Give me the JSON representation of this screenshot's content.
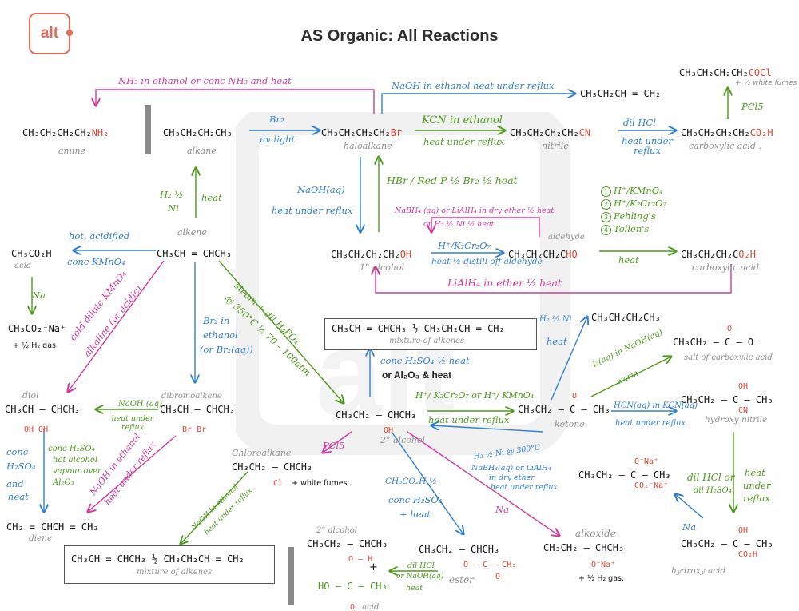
{
  "brand": {
    "logo_text": "alt",
    "watermark": "alt"
  },
  "title": "AS Organic: All Reactions",
  "colors": {
    "blue": "#2f7fd6",
    "green": "#4e9a1c",
    "pink": "#d4389f",
    "red": "#e0432f",
    "grey": "#8e8e8e",
    "logo": "#e46a5a"
  },
  "compounds": {
    "amine": {
      "formula_main": "CH₃CH₂CH₂CH₂",
      "formula_red": "NH₂",
      "caption": "amine"
    },
    "alkane": {
      "formula": "CH₃CH₂CH₂CH₃",
      "caption": "alkane"
    },
    "haloalkane": {
      "formula_main": "CH₃CH₂CH₂CH₂",
      "formula_red": "Br",
      "caption": "haloalkane"
    },
    "nitrile": {
      "formula_main": "CH₃CH₂CH₂CH₂",
      "formula_red": "CN",
      "caption": "nitrile"
    },
    "butene": {
      "formula": "CH₃CH₂CH = CH₂"
    },
    "carboxylic_top": {
      "formula_main": "CH₃CH₂CH₂CH₂",
      "formula_red": "CO₂H",
      "caption": "carboxylic acid ."
    },
    "acyl_chloride": {
      "formula_main": "CH₃CH₂CH₂CH₂",
      "formula_red": "COCl",
      "note": "+ ½ white fumes"
    },
    "alcohol1": {
      "formula_main": "CH₃CH₂CH₂CH₂",
      "formula_red": "OH",
      "caption": "1° alcohol"
    },
    "aldehyde": {
      "formula_main": "CH₃CH₂CH₂C",
      "formula_red": "HO",
      "caption": "aldehyde"
    },
    "carboxylic_mid": {
      "formula_main": "CH₃CH₂CH₂C",
      "formula_red": "O₂H",
      "caption": "carboxylic acid"
    },
    "alkene": {
      "formula": "CH₃CH = CHCH₃",
      "caption": "alkene"
    },
    "ethanoic": {
      "formula": "CH₃CO₂H",
      "caption": "acid"
    },
    "ethanoate": {
      "formula": "CH₃CO₂⁻Na⁺",
      "note": "+ ½ H₂ gas"
    },
    "diol": {
      "caption": "diol",
      "formula": "CH₃CH — CHCH₃",
      "sub": "OH      OH"
    },
    "dibromo": {
      "caption": "dibromoalkane",
      "formula": "CH₃CH — CHCH₃",
      "sub": "Br      Br"
    },
    "diene": {
      "formula": "CH₂ = CHCH = CH₂",
      "caption": "diene"
    },
    "alcohol2": {
      "formula": "CH₃CH₂ — CHCH₃",
      "sub": "OH",
      "caption": "2° alcohol"
    },
    "chloroalkane": {
      "caption": "Chloroalkane",
      "formula": "CH₃CH₂ — CHCH₃",
      "sub": "Cl",
      "note": "+ white fumes ."
    },
    "ketone": {
      "formula": "CH₃CH₂ — C — CH₃",
      "top": "O",
      "caption": "ketone"
    },
    "butane2": {
      "formula": "CH₃CH₂CH₂CH₃"
    },
    "carboxylate": {
      "formula": "CH₃CH₂ — C — O⁻",
      "top": "O",
      "caption": "salt of carboxylic acid"
    },
    "hydroxynitrile": {
      "formula": "CH₃CH₂ — C — CH₃",
      "top": "OH",
      "sub": "CN",
      "caption": "hydroxy nitrile"
    },
    "disodium": {
      "formula": "CH₃CH₂ — C — CH₃",
      "top": "O⁻Na⁺",
      "sub": "CO₂⁻Na⁺"
    },
    "hydroxyacid": {
      "formula": "CH₃CH₂ — C — CH₃",
      "top": "OH",
      "sub": "CO₂H",
      "caption": "hydroxy acid"
    },
    "alkoxide": {
      "caption": "alkoxide",
      "formula": "CH₃CH₂ — CHCH₃",
      "sub": "O⁻Na⁺",
      "note": "+ ½ H₂ gas."
    },
    "ester": {
      "formula": "CH₃CH₂ — CHCH₃",
      "sub": "O — C — CH₃",
      "sub2": "O",
      "caption": "ester"
    },
    "alcohol2_bottom": {
      "caption": "2° alcohol",
      "formula": "CH₃CH₂ — CHCH₃",
      "sub": "O — H",
      "plus": "+"
    },
    "acetic": {
      "formula": "HO — C — CH₃",
      "sub": "O",
      "caption": "acid"
    }
  },
  "boxes": {
    "mix_top": {
      "formula": "CH₃CH = CHCH₃  ½  CH₃CH₂CH = CH₂",
      "caption": "mixture of alkenes"
    },
    "mix_bottom": {
      "formula": "CH₃CH = CHCH₃  ½  CH₃CH₂CH = CH₂",
      "caption": "mixture of alkenes"
    }
  },
  "conditions": {
    "nh3": "NH₃ in ethanol  or  conc NH₃  and heat",
    "naoh_ethanol": "NaOH in ethanol  heat under reflux",
    "br2": "Br₂",
    "uv": "uv light",
    "kcn": "KCN in ethanol",
    "kcn_heat": "heat under reflux",
    "dil_hcl": "dil HCl",
    "dil_hcl_heat": "heat under reflux",
    "pcl5_top": "PCl5",
    "h2": "H₂ ½",
    "ni": "Ni",
    "heat": "heat",
    "naoh_aq": "NaOH(aq)",
    "naoh_aq_heat": "heat under reflux",
    "hbr": "HBr / Red P ½ Br₂ ½ heat",
    "nabh4": "NaBH₄ (aq) or LiAlH₄ in dry ether ½ heat",
    "nabh4_2": "or  H₂ ½ Ni ½ heat",
    "h_cr": "H⁺/K₂Cr₂O₇",
    "distill": "heat ½ distill off aldehyde",
    "ox_list": [
      "H⁺/KMnO₄",
      "H⁺/K₂Cr₂O₇",
      "Fehling's",
      "Tollen's"
    ],
    "ox_heat": "heat",
    "lialh4": "LiAlH₄  in  ether  ½  heat",
    "hot_kmno4": "hot, acidified",
    "hot_kmno4_2": "conc KMnO₄",
    "na": "Na",
    "cold_kmno4": "cold dilute KMnO₄",
    "cold_kmno4_2": "alkaline (or acidic)",
    "br2_ethanol": "Br₂ in",
    "br2_ethanol_2": "ethanol",
    "br2_ethanol_3": "(or Br₂(aq))",
    "steam": "steam + dil H₃PO₄",
    "steam_2": "@ 350°C ½  70 – 100atm",
    "conc_h2so4": "conc H₂SO₄ ½ heat",
    "al2o3": "or Al₂O₃ & heat",
    "h2ni_right": "H₂ ½ Ni",
    "h2ni_right_2": "heat",
    "ox_ketone": "H⁺/ K₂Cr₂O₇ or H⁺/ KMnO₄",
    "ox_ketone_heat": "heat under reflux",
    "i2": "I₂(aq) in NaOH(aq)",
    "i2_warm": "warm",
    "naoh_aq2": "NaOH (aq)",
    "naoh_aq2_heat": "heat under reflux",
    "pcl5": "PCl5",
    "hcn": "HCN(aq) in KCN(aq)",
    "hcn_heat": "heat under reflux",
    "h2_ni_300": "H₂ ½ Ni @ 300°C",
    "nabh4_b": "NaBH₄(aq) or LiAlH₄",
    "nabh4_b2": "in dry ether",
    "nabh4_b3": "heat under reflux",
    "conc_h2so4_dehyd": "conc H₂SO₄",
    "conc_h2so4_dehyd_2": "hot alcohol",
    "conc_h2so4_dehyd_3": "vapour over",
    "conc_h2so4_dehyd_4": "Al₂O₃",
    "conc_h2so4_dehyd_5": "and heat",
    "naoh_ethanol2": "NaOH in ethanol",
    "naoh_ethanol2_b": "heat under reflux",
    "naoh_ethanol3": "NaOH in ethanol",
    "naoh_ethanol3_b": "heat under reflux",
    "esterify": "CH₃CO₂H ½",
    "esterify_2": "conc H₂SO₄",
    "esterify_3": "+ heat",
    "na_alkoxide": "Na",
    "hydrolysis": "dil HCl",
    "hydrolysis_2": "or NaOH(aq)",
    "hydrolysis_3": "heat",
    "dil_hcl_right": "dil HCl or",
    "dil_hcl_right_2": "dil H₂SO₄",
    "heat_under_reflux_right": "heat",
    "heat_under_reflux_right_2": "under",
    "heat_under_reflux_right_3": "reflux",
    "na_right": "Na",
    "conc_h2so4_2": "conc",
    "conc_h2so4_3": "H₂SO₄",
    "and_heat": "and",
    "and_heat_2": "heat"
  }
}
